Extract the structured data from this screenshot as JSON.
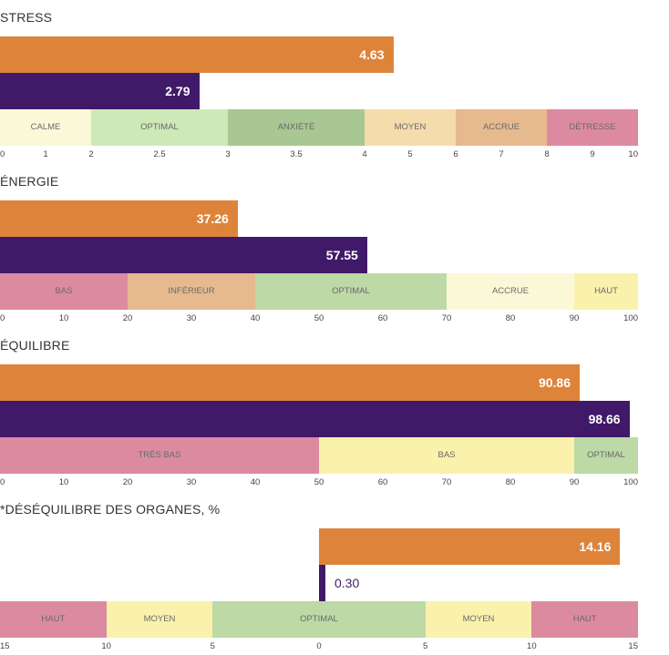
{
  "colors": {
    "series_a": "#de843a",
    "series_b": "#401a68"
  },
  "chart_data": [
    {
      "type": "bar",
      "title": "STRESS",
      "xlim": [
        0,
        10
      ],
      "series": [
        {
          "values": [
            4.63
          ]
        },
        {
          "values": [
            2.79
          ]
        }
      ],
      "data_labels": [
        "4.63",
        "2.79"
      ],
      "zones": [
        {
          "label": "CALME",
          "from": 0,
          "to": 2,
          "color": "#fbf8d8"
        },
        {
          "label": "OPTIMAL",
          "from": 2,
          "to": 3,
          "color": "#cde9b8"
        },
        {
          "label": "",
          "from": 2.5,
          "to": 3,
          "color": "#bfdca8"
        },
        {
          "label": "ANXIÉTÉ",
          "from": 3,
          "to": 4,
          "color": "#a9c792"
        },
        {
          "label": "",
          "from": 3.5,
          "to": 4,
          "color": "#9db889"
        },
        {
          "label": "MOYEN",
          "from": 4,
          "to": 6,
          "color": "#f5dcac"
        },
        {
          "label": "ACCRUE",
          "from": 6,
          "to": 8,
          "color": "#e7b98f"
        },
        {
          "label": "DÉTRESSE",
          "from": 8,
          "to": 10,
          "color": "#dc8aa0"
        }
      ],
      "ticks": [
        {
          "label": "0",
          "value": 0
        },
        {
          "label": "1",
          "value": 1
        },
        {
          "label": "2",
          "value": 2
        },
        {
          "label": "2.5",
          "value": 3.5
        },
        {
          "label": "3",
          "value": 5
        },
        {
          "label": "3.5",
          "value": 6.5
        },
        {
          "label": "4",
          "value": 8
        },
        {
          "label": "5",
          "value": 9
        },
        {
          "label": "6",
          "value": 10
        },
        {
          "label": "7",
          "value": 11
        },
        {
          "label": "8",
          "value": 12
        },
        {
          "label": "9",
          "value": 13
        },
        {
          "label": "10",
          "value": 14
        }
      ]
    },
    {
      "type": "bar",
      "title": "ÉNERGIE",
      "xlim": [
        0,
        100
      ],
      "series": [
        {
          "values": [
            37.26
          ]
        },
        {
          "values": [
            57.55
          ]
        }
      ],
      "data_labels": [
        "37.26",
        "57.55"
      ],
      "zones": [
        {
          "label": "BAS",
          "from": 0,
          "to": 20,
          "color": "#dc8aa0"
        },
        {
          "label": "INFÉRIEUR",
          "from": 20,
          "to": 40,
          "color": "#e7b98f"
        },
        {
          "label": "OPTIMAL",
          "from": 40,
          "to": 70,
          "color": "#bcd9a6"
        },
        {
          "label": "ACCRUE",
          "from": 70,
          "to": 90,
          "color": "#fbf8d8"
        },
        {
          "label": "HAUT",
          "from": 90,
          "to": 100,
          "color": "#faf1ac"
        }
      ],
      "ticks": [
        {
          "label": "0",
          "value": 0
        },
        {
          "label": "10",
          "value": 10
        },
        {
          "label": "20",
          "value": 20
        },
        {
          "label": "30",
          "value": 30
        },
        {
          "label": "40",
          "value": 40
        },
        {
          "label": "50",
          "value": 50
        },
        {
          "label": "60",
          "value": 60
        },
        {
          "label": "70",
          "value": 70
        },
        {
          "label": "80",
          "value": 80
        },
        {
          "label": "90",
          "value": 90
        },
        {
          "label": "100",
          "value": 100
        }
      ]
    },
    {
      "type": "bar",
      "title": "ÉQUILIBRE",
      "xlim": [
        0,
        100
      ],
      "series": [
        {
          "values": [
            90.86
          ]
        },
        {
          "values": [
            98.66
          ]
        }
      ],
      "data_labels": [
        "90.86",
        "98.66"
      ],
      "zones": [
        {
          "label": "TRÈS BAS",
          "from": 0,
          "to": 50,
          "color": "#dc8aa0"
        },
        {
          "label": "BAS",
          "from": 50,
          "to": 90,
          "color": "#faf1ac"
        },
        {
          "label": "OPTIMAL",
          "from": 90,
          "to": 100,
          "color": "#bcd9a6"
        }
      ],
      "ticks": [
        {
          "label": "0",
          "value": 0
        },
        {
          "label": "10",
          "value": 10
        },
        {
          "label": "20",
          "value": 20
        },
        {
          "label": "30",
          "value": 30
        },
        {
          "label": "40",
          "value": 40
        },
        {
          "label": "50",
          "value": 50
        },
        {
          "label": "60",
          "value": 60
        },
        {
          "label": "70",
          "value": 70
        },
        {
          "label": "80",
          "value": 80
        },
        {
          "label": "90",
          "value": 90
        },
        {
          "label": "100",
          "value": 100
        }
      ]
    },
    {
      "type": "bar",
      "title": "*DÉSÉQUILIBRE DES ORGANES, %",
      "xlim": [
        -15,
        15
      ],
      "series": [
        {
          "values": [
            14.16
          ]
        },
        {
          "values": [
            0.3
          ]
        }
      ],
      "data_labels": [
        "14.16",
        "0.30"
      ],
      "zones": [
        {
          "label": "HAUT",
          "from": -15,
          "to": -10,
          "color": "#dc8aa0"
        },
        {
          "label": "MOYEN",
          "from": -10,
          "to": -5,
          "color": "#faf1ac"
        },
        {
          "label": "OPTIMAL",
          "from": -5,
          "to": 5,
          "color": "#bcd9a6"
        },
        {
          "label": "MOYEN",
          "from": 5,
          "to": 10,
          "color": "#faf1ac"
        },
        {
          "label": "HAUT",
          "from": 10,
          "to": 15,
          "color": "#dc8aa0"
        }
      ],
      "ticks": [
        {
          "label": "15",
          "value": -15
        },
        {
          "label": "10",
          "value": -10
        },
        {
          "label": "5",
          "value": -5
        },
        {
          "label": "0",
          "value": 0
        },
        {
          "label": "5",
          "value": 5
        },
        {
          "label": "10",
          "value": 10
        },
        {
          "label": "15",
          "value": 15
        }
      ]
    }
  ]
}
